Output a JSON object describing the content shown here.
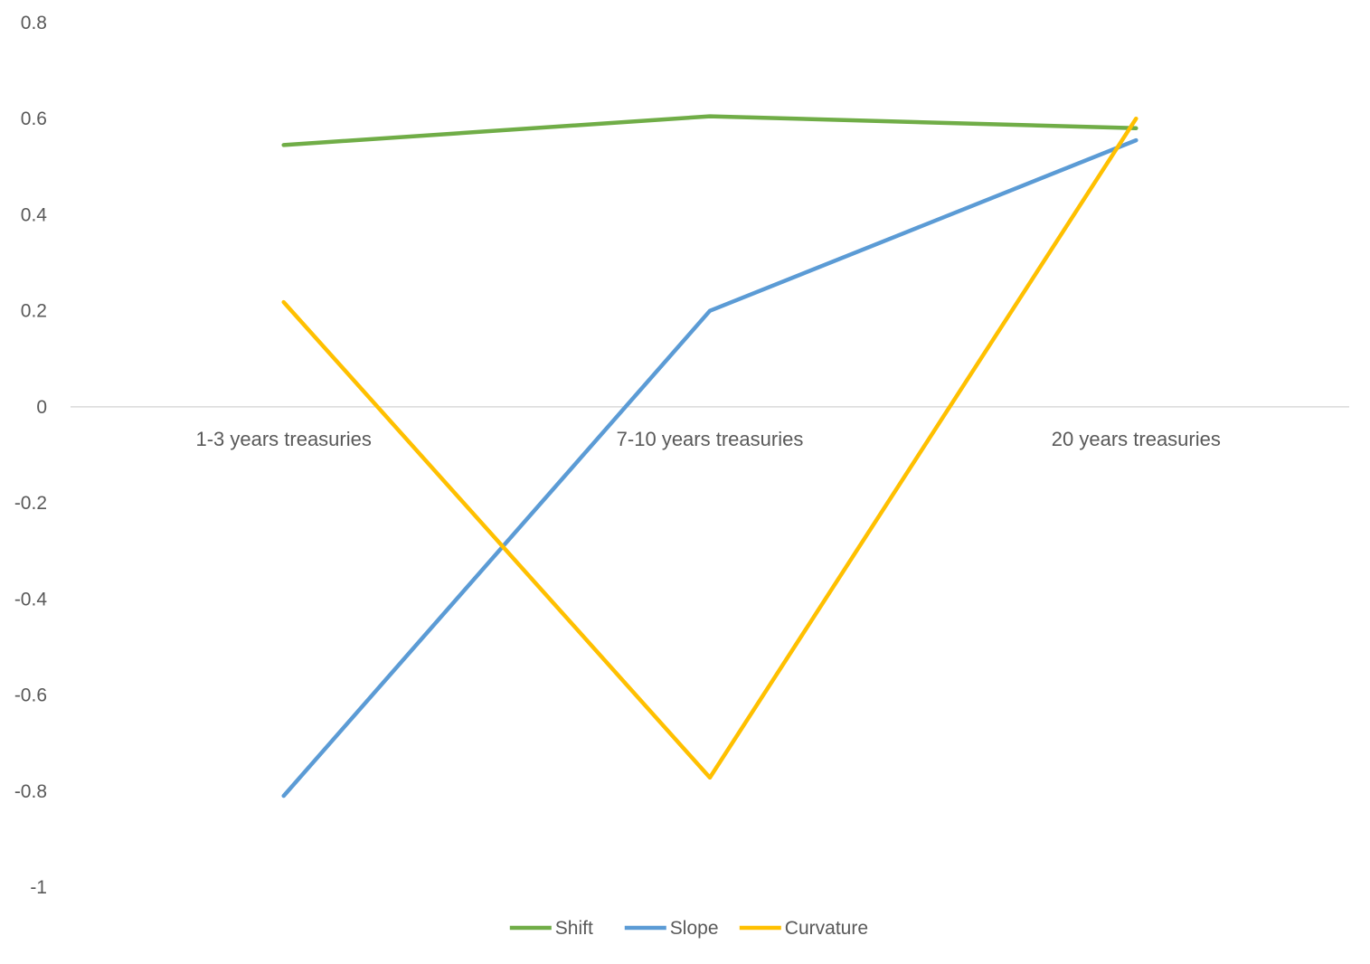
{
  "chart_data": {
    "type": "line",
    "title": "",
    "xlabel": "",
    "ylabel": "",
    "categories": [
      "1-3 years treasuries",
      "7-10 years treasuries",
      "20 years treasuries"
    ],
    "ylim": [
      -1,
      0.8
    ],
    "yticks": [
      0.8,
      0.6,
      0.4,
      0.2,
      0,
      -0.2,
      -0.4,
      -0.6,
      -0.8,
      -1
    ],
    "ytick_labels": [
      "0.8",
      "0.6",
      "0.4",
      "0.2",
      "0",
      "-0.2",
      "-0.4",
      "-0.6",
      "-0.8",
      "-1"
    ],
    "grid": false,
    "legend_position": "bottom",
    "series": [
      {
        "name": "Shift",
        "color": "#70AD47",
        "values": [
          0.545,
          0.605,
          0.58
        ]
      },
      {
        "name": "Slope",
        "color": "#5B9BD5",
        "values": [
          -0.81,
          0.2,
          0.555
        ]
      },
      {
        "name": "Curvature",
        "color": "#FFC000",
        "values": [
          0.218,
          -0.772,
          0.6
        ]
      }
    ]
  }
}
